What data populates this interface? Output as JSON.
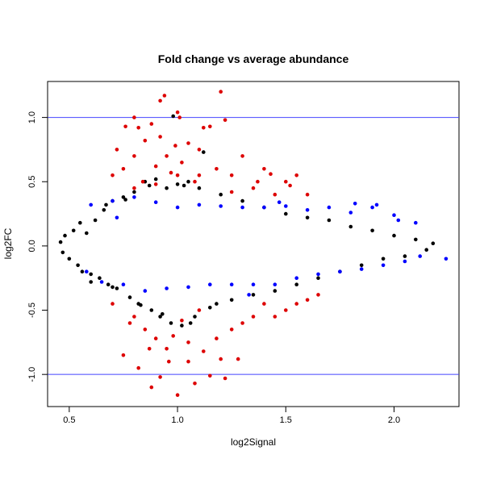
{
  "chart_data": {
    "type": "scatter",
    "title": "Fold change vs average abundance",
    "xlabel": "log2Signal",
    "ylabel": "log2FC",
    "xlim": [
      0.4,
      2.3
    ],
    "ylim": [
      -1.25,
      1.28
    ],
    "x_ticks": [
      {
        "value": 0.5,
        "label": "0.5"
      },
      {
        "value": 1.0,
        "label": "1.0"
      },
      {
        "value": 1.5,
        "label": "1.5"
      },
      {
        "value": 2.0,
        "label": "2.0"
      }
    ],
    "y_ticks": [
      {
        "value": -1.0,
        "label": "-1.0"
      },
      {
        "value": -0.5,
        "label": "-0.5"
      },
      {
        "value": 0.0,
        "label": "0.0"
      },
      {
        "value": 0.5,
        "label": "0.5"
      },
      {
        "value": 1.0,
        "label": "1.0"
      }
    ],
    "hlines": [
      {
        "y": 1.0,
        "color": "#4444ff"
      },
      {
        "y": -1.0,
        "color": "#4444ff"
      }
    ],
    "colors": {
      "black": "#000000",
      "blue": "#0000ff",
      "red": "#dd0000"
    },
    "grid": false,
    "series": [
      {
        "color": "black",
        "points": [
          [
            0.46,
            0.03
          ],
          [
            0.47,
            -0.05
          ],
          [
            0.48,
            0.08
          ],
          [
            0.5,
            -0.1
          ],
          [
            0.52,
            0.12
          ],
          [
            0.54,
            -0.15
          ],
          [
            0.55,
            0.18
          ],
          [
            0.56,
            -0.2
          ],
          [
            0.58,
            0.1
          ],
          [
            0.6,
            -0.22
          ],
          [
            0.62,
            0.2
          ],
          [
            0.64,
            -0.25
          ],
          [
            0.66,
            0.28
          ],
          [
            0.68,
            -0.3
          ],
          [
            0.7,
            0.35
          ],
          [
            0.72,
            -0.33
          ],
          [
            0.75,
            0.38
          ],
          [
            0.78,
            -0.4
          ],
          [
            0.8,
            0.42
          ],
          [
            0.82,
            -0.45
          ],
          [
            0.85,
            0.5
          ],
          [
            0.88,
            -0.5
          ],
          [
            0.9,
            0.52
          ],
          [
            0.92,
            -0.55
          ],
          [
            0.95,
            0.45
          ],
          [
            0.97,
            -0.6
          ],
          [
            0.98,
            1.01
          ],
          [
            1.0,
            0.48
          ],
          [
            1.02,
            -0.62
          ],
          [
            1.05,
            0.5
          ],
          [
            1.08,
            -0.55
          ],
          [
            1.1,
            0.45
          ],
          [
            1.12,
            0.73
          ],
          [
            1.15,
            -0.48
          ],
          [
            1.2,
            0.4
          ],
          [
            1.25,
            -0.42
          ],
          [
            1.3,
            0.35
          ],
          [
            1.35,
            -0.38
          ],
          [
            1.4,
            0.3
          ],
          [
            1.45,
            -0.35
          ],
          [
            1.5,
            0.25
          ],
          [
            1.55,
            -0.3
          ],
          [
            1.6,
            0.22
          ],
          [
            1.65,
            -0.25
          ],
          [
            1.7,
            0.2
          ],
          [
            1.75,
            -0.2
          ],
          [
            1.8,
            0.15
          ],
          [
            1.85,
            -0.15
          ],
          [
            1.9,
            0.12
          ],
          [
            1.95,
            -0.1
          ],
          [
            2.0,
            0.08
          ],
          [
            2.05,
            -0.08
          ],
          [
            2.1,
            0.05
          ],
          [
            2.15,
            -0.03
          ],
          [
            2.18,
            0.02
          ],
          [
            0.6,
            -0.28
          ],
          [
            0.7,
            -0.32
          ],
          [
            0.83,
            -0.46
          ],
          [
            0.93,
            -0.53
          ],
          [
            1.06,
            -0.6
          ],
          [
            0.67,
            0.32
          ],
          [
            0.76,
            0.36
          ],
          [
            0.87,
            0.47
          ],
          [
            1.03,
            0.47
          ],
          [
            1.18,
            -0.45
          ]
        ]
      },
      {
        "color": "blue",
        "points": [
          [
            0.6,
            0.32
          ],
          [
            0.65,
            -0.28
          ],
          [
            0.7,
            0.35
          ],
          [
            0.75,
            -0.3
          ],
          [
            0.8,
            0.38
          ],
          [
            0.85,
            -0.35
          ],
          [
            0.9,
            0.34
          ],
          [
            0.95,
            -0.33
          ],
          [
            1.0,
            0.3
          ],
          [
            1.05,
            -0.32
          ],
          [
            1.1,
            0.32
          ],
          [
            1.15,
            -0.3
          ],
          [
            1.2,
            0.31
          ],
          [
            1.25,
            -0.3
          ],
          [
            1.3,
            0.3
          ],
          [
            1.35,
            -0.3
          ],
          [
            1.4,
            0.3
          ],
          [
            1.45,
            -0.3
          ],
          [
            1.5,
            0.31
          ],
          [
            1.55,
            -0.25
          ],
          [
            1.6,
            0.28
          ],
          [
            1.65,
            -0.22
          ],
          [
            1.7,
            0.3
          ],
          [
            1.75,
            -0.2
          ],
          [
            1.8,
            0.26
          ],
          [
            1.85,
            -0.18
          ],
          [
            1.9,
            0.3
          ],
          [
            1.95,
            -0.15
          ],
          [
            2.0,
            0.24
          ],
          [
            2.05,
            -0.12
          ],
          [
            2.1,
            0.18
          ],
          [
            2.12,
            -0.08
          ],
          [
            2.24,
            -0.1
          ],
          [
            1.82,
            0.33
          ],
          [
            1.92,
            0.32
          ],
          [
            2.02,
            0.2
          ],
          [
            0.58,
            -0.2
          ],
          [
            0.72,
            0.22
          ],
          [
            1.33,
            -0.38
          ],
          [
            1.47,
            0.34
          ]
        ]
      },
      {
        "color": "red",
        "points": [
          [
            0.7,
            0.55
          ],
          [
            0.72,
            0.75
          ],
          [
            0.75,
            0.6
          ],
          [
            0.76,
            0.93
          ],
          [
            0.8,
            1.0
          ],
          [
            0.8,
            0.7
          ],
          [
            0.82,
            0.92
          ],
          [
            0.84,
            0.5
          ],
          [
            0.85,
            0.82
          ],
          [
            0.88,
            0.95
          ],
          [
            0.9,
            0.62
          ],
          [
            0.92,
            1.13
          ],
          [
            0.92,
            0.85
          ],
          [
            0.94,
            1.17
          ],
          [
            0.95,
            0.7
          ],
          [
            0.97,
            0.57
          ],
          [
            0.99,
            0.78
          ],
          [
            1.0,
            1.04
          ],
          [
            1.01,
            1.0
          ],
          [
            1.02,
            0.65
          ],
          [
            1.05,
            0.8
          ],
          [
            1.08,
            0.5
          ],
          [
            1.1,
            0.75
          ],
          [
            1.12,
            0.92
          ],
          [
            1.15,
            0.93
          ],
          [
            1.18,
            0.6
          ],
          [
            1.2,
            1.2
          ],
          [
            1.22,
            0.98
          ],
          [
            1.25,
            0.55
          ],
          [
            1.3,
            0.7
          ],
          [
            1.35,
            0.45
          ],
          [
            1.4,
            0.6
          ],
          [
            1.45,
            0.4
          ],
          [
            1.5,
            0.5
          ],
          [
            1.55,
            0.55
          ],
          [
            1.6,
            0.4
          ],
          [
            0.7,
            -0.45
          ],
          [
            0.75,
            -0.85
          ],
          [
            0.8,
            -0.55
          ],
          [
            0.82,
            -0.95
          ],
          [
            0.85,
            -0.65
          ],
          [
            0.88,
            -1.1
          ],
          [
            0.9,
            -0.72
          ],
          [
            0.92,
            -1.02
          ],
          [
            0.95,
            -0.8
          ],
          [
            0.98,
            -0.7
          ],
          [
            1.0,
            -1.16
          ],
          [
            1.02,
            -0.58
          ],
          [
            1.05,
            -0.9
          ],
          [
            1.08,
            -1.07
          ],
          [
            1.1,
            -0.5
          ],
          [
            1.12,
            -0.82
          ],
          [
            1.15,
            -1.01
          ],
          [
            1.2,
            -0.88
          ],
          [
            1.22,
            -1.03
          ],
          [
            1.25,
            -0.65
          ],
          [
            1.28,
            -0.88
          ],
          [
            1.3,
            -0.6
          ],
          [
            1.35,
            -0.55
          ],
          [
            1.4,
            -0.45
          ],
          [
            1.45,
            -0.55
          ],
          [
            1.5,
            -0.5
          ],
          [
            1.55,
            -0.45
          ],
          [
            1.6,
            -0.42
          ],
          [
            1.65,
            -0.38
          ],
          [
            0.78,
            -0.6
          ],
          [
            0.87,
            -0.8
          ],
          [
            0.96,
            -0.9
          ],
          [
            1.05,
            -0.75
          ],
          [
            1.18,
            -0.72
          ],
          [
            0.8,
            0.45
          ],
          [
            0.9,
            0.48
          ],
          [
            1.0,
            0.55
          ],
          [
            1.1,
            0.55
          ],
          [
            1.25,
            0.42
          ],
          [
            1.37,
            0.5
          ],
          [
            1.43,
            0.56
          ],
          [
            1.52,
            0.47
          ]
        ]
      }
    ]
  }
}
